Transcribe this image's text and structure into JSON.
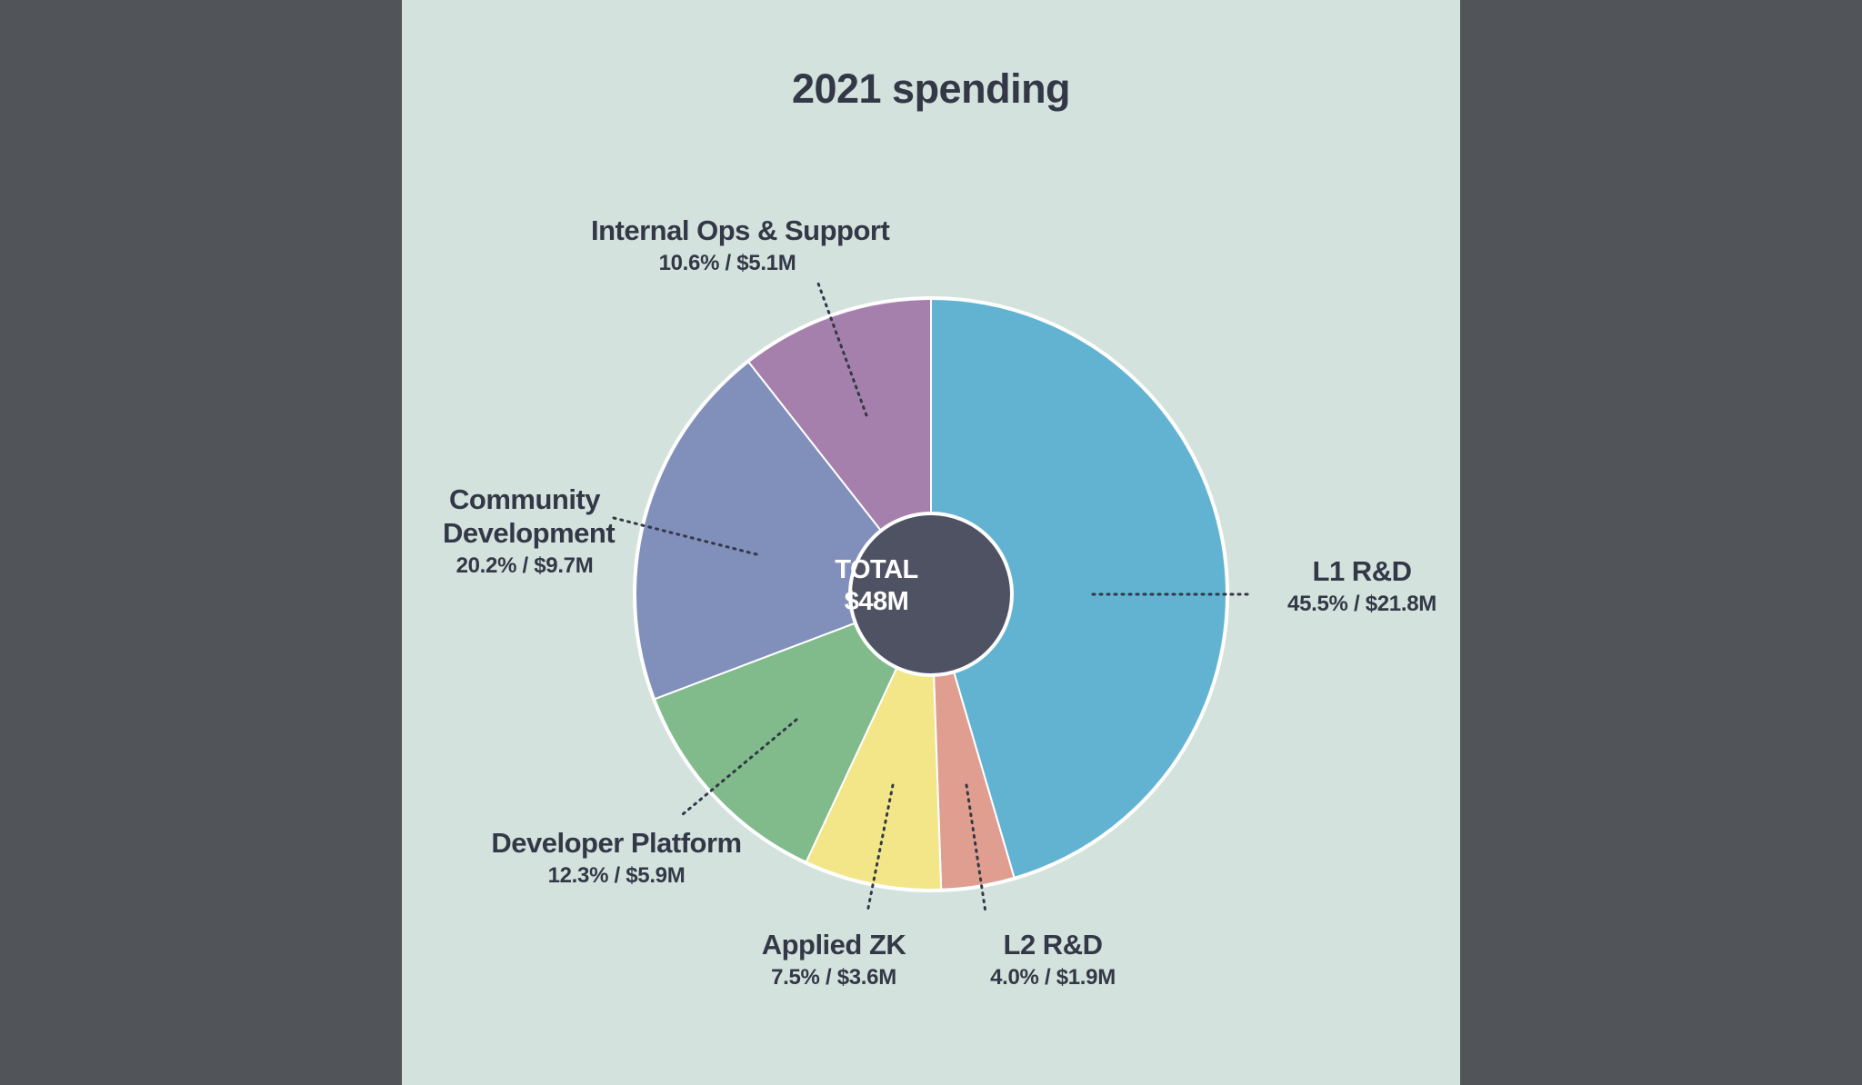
{
  "chart_data": {
    "type": "pie",
    "title": "2021 spending",
    "center_label": {
      "line1": "TOTAL",
      "line2": "$48M"
    },
    "slices": [
      {
        "name": "L1 R&D",
        "percent": 45.5,
        "amount": 21.8,
        "value_label": "45.5% / $21.8M",
        "color": "#62b3d2"
      },
      {
        "name": "L2 R&D",
        "percent": 4.0,
        "amount": 1.9,
        "value_label": "4.0% / $1.9M",
        "color": "#df9e8f"
      },
      {
        "name": "Applied ZK",
        "percent": 7.5,
        "amount": 3.6,
        "value_label": "7.5% / $3.6M",
        "color": "#f3e688"
      },
      {
        "name": "Developer Platform",
        "percent": 12.3,
        "amount": 5.9,
        "value_label": "12.3% / $5.9M",
        "color": "#81ba8b"
      },
      {
        "name": "Community Development",
        "percent": 20.2,
        "amount": 9.7,
        "value_label": "20.2% / $9.7M",
        "color": "#818fbb"
      },
      {
        "name": "Internal Ops & Support",
        "percent": 10.6,
        "amount": 5.1,
        "value_label": "10.6% / $5.1M",
        "color": "#a680ac"
      }
    ],
    "legend": "none",
    "start_angle_deg": 0,
    "direction": "clockwise"
  },
  "colors": {
    "page_background": "#d4e2de",
    "outer_background": "#515458",
    "center_fill": "#4f5263",
    "text": "#323846",
    "leader_line": "#323846"
  }
}
